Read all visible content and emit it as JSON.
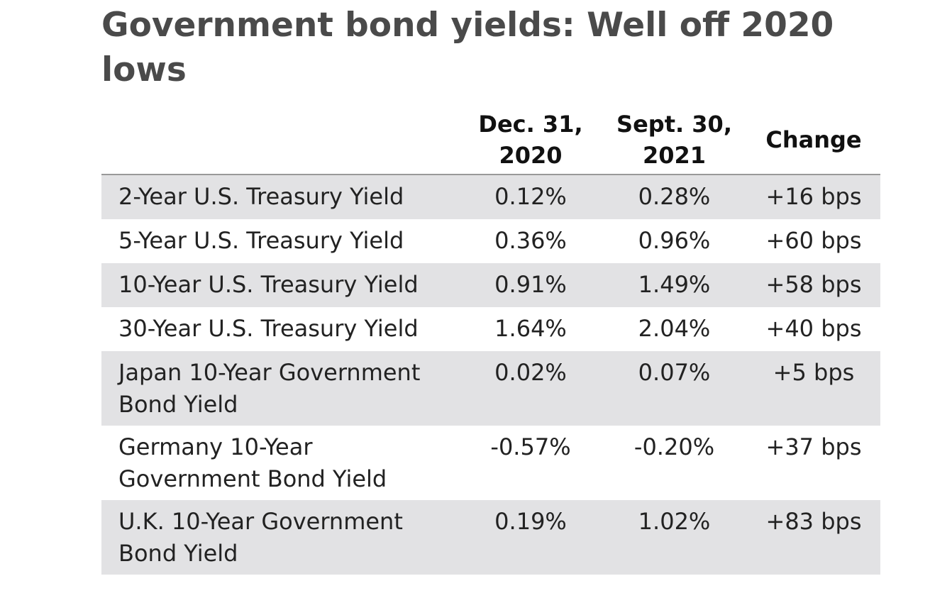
{
  "chart_data": {
    "type": "table",
    "title": "Government bond yields: Well off 2020 lows",
    "columns": [
      "",
      "Dec. 31, 2020",
      "Sept. 30, 2021",
      "Change"
    ],
    "rows": [
      {
        "label": "2-Year U.S. Treasury Yield",
        "dec_2020": "0.12%",
        "sep_2021": "0.28%",
        "change": "+16 bps"
      },
      {
        "label": "5-Year U.S. Treasury Yield",
        "dec_2020": "0.36%",
        "sep_2021": "0.96%",
        "change": "+60 bps"
      },
      {
        "label": "10-Year U.S. Treasury Yield",
        "dec_2020": "0.91%",
        "sep_2021": "1.49%",
        "change": "+58 bps"
      },
      {
        "label": "30-Year U.S. Treasury Yield",
        "dec_2020": "1.64%",
        "sep_2021": "2.04%",
        "change": "+40 bps"
      },
      {
        "label": "Japan 10-Year Government Bond Yield",
        "dec_2020": "0.02%",
        "sep_2021": "0.07%",
        "change": "+5 bps"
      },
      {
        "label": "Germany 10-Year Government Bond Yield",
        "dec_2020": "-0.57%",
        "sep_2021": "-0.20%",
        "change": "+37 bps"
      },
      {
        "label": "U.K. 10-Year Government Bond Yield",
        "dec_2020": "0.19%",
        "sep_2021": "1.02%",
        "change": "+83 bps"
      }
    ],
    "row_shading": "alternating"
  },
  "colors": {
    "title": "#4a4a4a",
    "shaded_row": "#e2e2e4",
    "header_rule": "#999999"
  }
}
